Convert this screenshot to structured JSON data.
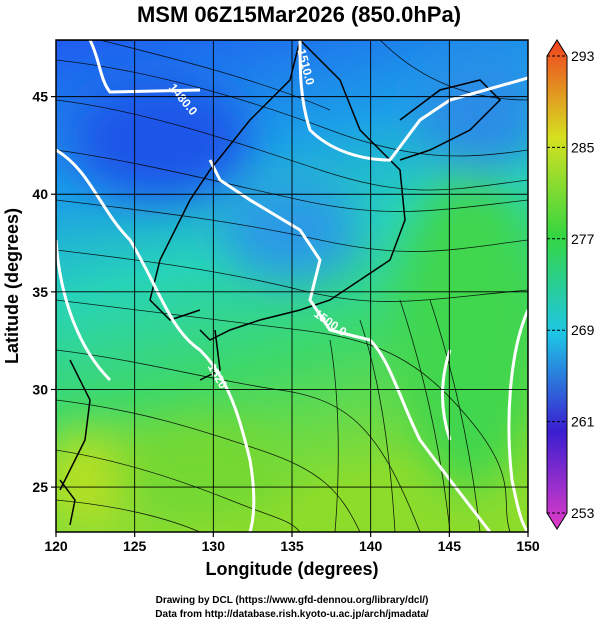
{
  "title": "MSM 06Z15Mar2026 (850.0hPa)",
  "map": {
    "xlabel": "Longitude (degrees)",
    "ylabel": "Latitude  (degrees)",
    "xlim": [
      120,
      150
    ],
    "ylim": [
      22.7,
      47.9
    ],
    "xticks": [
      120,
      125,
      130,
      135,
      140,
      145,
      150
    ],
    "yticks": [
      25,
      30,
      35,
      40,
      45
    ],
    "contour_labels": [
      "1510.0",
      "1480.0",
      "1500.0",
      "1520"
    ]
  },
  "colorbar": {
    "lim": [
      253,
      293
    ],
    "ticks": [
      253,
      261,
      269,
      277,
      285,
      293
    ]
  },
  "credits": [
    "Drawing by DCL (https://www.gfd-dennou.org/library/dcl/)",
    "Data from http://database.rish.kyoto-u.ac.jp/arch/jmadata/"
  ]
}
